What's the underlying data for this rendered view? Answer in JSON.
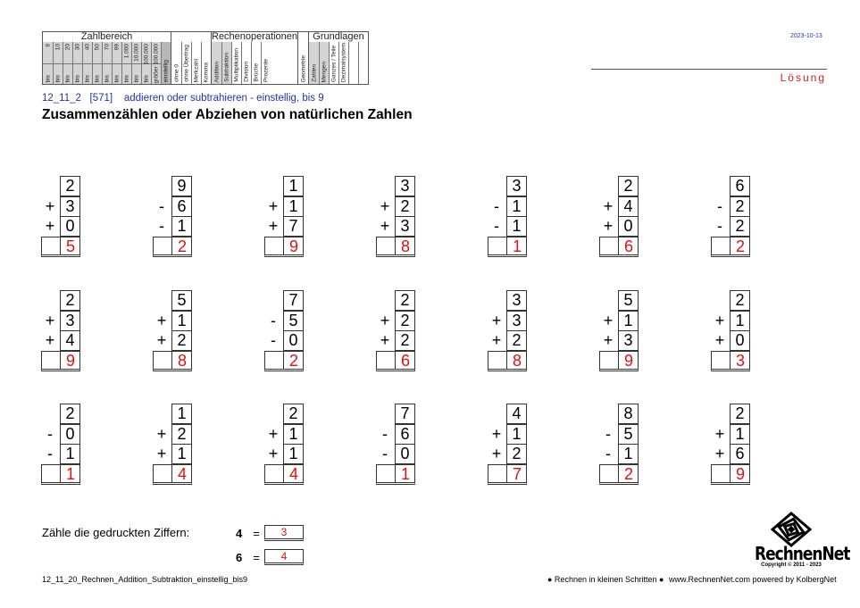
{
  "header": {
    "groups": [
      {
        "title": "Zahlbereich",
        "columns": [
          {
            "top": "9",
            "bottom": "bis"
          },
          {
            "top": "10",
            "bottom": "bis"
          },
          {
            "top": "20",
            "bottom": "bis"
          },
          {
            "top": "30",
            "bottom": "bis"
          },
          {
            "top": "40",
            "bottom": "bis"
          },
          {
            "top": "50",
            "bottom": "bis"
          },
          {
            "top": "70",
            "bottom": "bis"
          },
          {
            "top": "99",
            "bottom": "bis"
          },
          {
            "top": "1.000",
            "bottom": "bis"
          },
          {
            "top": "10.000",
            "bottom": "bis"
          },
          {
            "top": "100.000",
            "bottom": "bis"
          },
          {
            "top": "größer 100.000",
            "bottom": ""
          },
          {
            "top": "",
            "bottom": "einstellig"
          }
        ]
      },
      {
        "title": "",
        "columns": [
          {
            "top": "",
            "bottom": "ohne 0"
          },
          {
            "top": "",
            "bottom": "ohne Übertrag"
          },
          {
            "top": "",
            "bottom": "Merkzahl"
          },
          {
            "top": "",
            "bottom": "Komma"
          }
        ]
      },
      {
        "title": "Rechenoperationen",
        "columns": [
          {
            "top": "",
            "bottom": "Addition"
          },
          {
            "top": "",
            "bottom": "Subtraktion"
          },
          {
            "top": "",
            "bottom": "Multiplikation"
          },
          {
            "top": "",
            "bottom": "Division"
          },
          {
            "top": "",
            "bottom": "Brüche"
          },
          {
            "top": "",
            "bottom": "Prozente"
          }
        ]
      },
      {
        "title": "",
        "columns": [
          {
            "top": "",
            "bottom": "Geometrie"
          }
        ]
      },
      {
        "title": "Grundlagen",
        "columns": [
          {
            "top": "",
            "bottom": "Zahlen"
          },
          {
            "top": "",
            "bottom": "Mengen"
          },
          {
            "top": "",
            "bottom": "Ganzes / Teile"
          },
          {
            "top": "",
            "bottom": "Dezimalsystem"
          },
          {
            "top": "",
            "bottom": ""
          },
          {
            "top": "",
            "bottom": ""
          }
        ]
      }
    ],
    "date": "2023-10-13",
    "solution_label": "Lösung"
  },
  "worksheet": {
    "code": "12_11_2   [571]    addieren oder subtrahieren - einstellig, bis 9",
    "title": "Zusammenzählen oder Abziehen von natürlichen Zahlen"
  },
  "problems": [
    {
      "n": [
        "2",
        "3",
        "0"
      ],
      "ops": [
        "+",
        "+"
      ],
      "ans": "5"
    },
    {
      "n": [
        "9",
        "6",
        "1"
      ],
      "ops": [
        "-",
        "-"
      ],
      "ans": "2"
    },
    {
      "n": [
        "1",
        "1",
        "7"
      ],
      "ops": [
        "+",
        "+"
      ],
      "ans": "9"
    },
    {
      "n": [
        "3",
        "2",
        "3"
      ],
      "ops": [
        "+",
        "+"
      ],
      "ans": "8"
    },
    {
      "n": [
        "3",
        "1",
        "1"
      ],
      "ops": [
        "-",
        "-"
      ],
      "ans": "1"
    },
    {
      "n": [
        "2",
        "4",
        "0"
      ],
      "ops": [
        "+",
        "+"
      ],
      "ans": "6"
    },
    {
      "n": [
        "6",
        "2",
        "2"
      ],
      "ops": [
        "-",
        "-"
      ],
      "ans": "2"
    },
    {
      "n": [
        "2",
        "3",
        "4"
      ],
      "ops": [
        "+",
        "+"
      ],
      "ans": "9"
    },
    {
      "n": [
        "5",
        "1",
        "2"
      ],
      "ops": [
        "+",
        "+"
      ],
      "ans": "8"
    },
    {
      "n": [
        "7",
        "5",
        "0"
      ],
      "ops": [
        "-",
        "-"
      ],
      "ans": "2"
    },
    {
      "n": [
        "2",
        "2",
        "2"
      ],
      "ops": [
        "+",
        "+"
      ],
      "ans": "6"
    },
    {
      "n": [
        "3",
        "3",
        "2"
      ],
      "ops": [
        "+",
        "+"
      ],
      "ans": "8"
    },
    {
      "n": [
        "5",
        "1",
        "3"
      ],
      "ops": [
        "+",
        "+"
      ],
      "ans": "9"
    },
    {
      "n": [
        "2",
        "1",
        "0"
      ],
      "ops": [
        "+",
        "+"
      ],
      "ans": "3"
    },
    {
      "n": [
        "2",
        "0",
        "1"
      ],
      "ops": [
        "-",
        "-"
      ],
      "ans": "1"
    },
    {
      "n": [
        "1",
        "2",
        "1"
      ],
      "ops": [
        "+",
        "+"
      ],
      "ans": "4"
    },
    {
      "n": [
        "2",
        "1",
        "1"
      ],
      "ops": [
        "+",
        "+"
      ],
      "ans": "4"
    },
    {
      "n": [
        "7",
        "6",
        "0"
      ],
      "ops": [
        "-",
        "-"
      ],
      "ans": "1"
    },
    {
      "n": [
        "4",
        "1",
        "2"
      ],
      "ops": [
        "+",
        "+"
      ],
      "ans": "7"
    },
    {
      "n": [
        "8",
        "5",
        "1"
      ],
      "ops": [
        "-",
        "-"
      ],
      "ans": "2"
    },
    {
      "n": [
        "2",
        "1",
        "6"
      ],
      "ops": [
        "+",
        "+"
      ],
      "ans": "9"
    }
  ],
  "count": {
    "label": "Zähle die gedruckten Ziffern:",
    "rows": [
      {
        "digit": "4",
        "eq": "=",
        "value": "3"
      },
      {
        "digit": "6",
        "eq": "=",
        "value": "4"
      }
    ]
  },
  "logo": {
    "brand": "RechnenNet",
    "copyright": "Copyright © 2011 - 2023"
  },
  "footer": {
    "left": "12_11_20_Rechnen_Addition_Subtraktion_einstellig_bis9",
    "middle": "● Rechnen in kleinen Schritten ●",
    "right": "www.RechnenNet.com powered by KolbergNet"
  }
}
